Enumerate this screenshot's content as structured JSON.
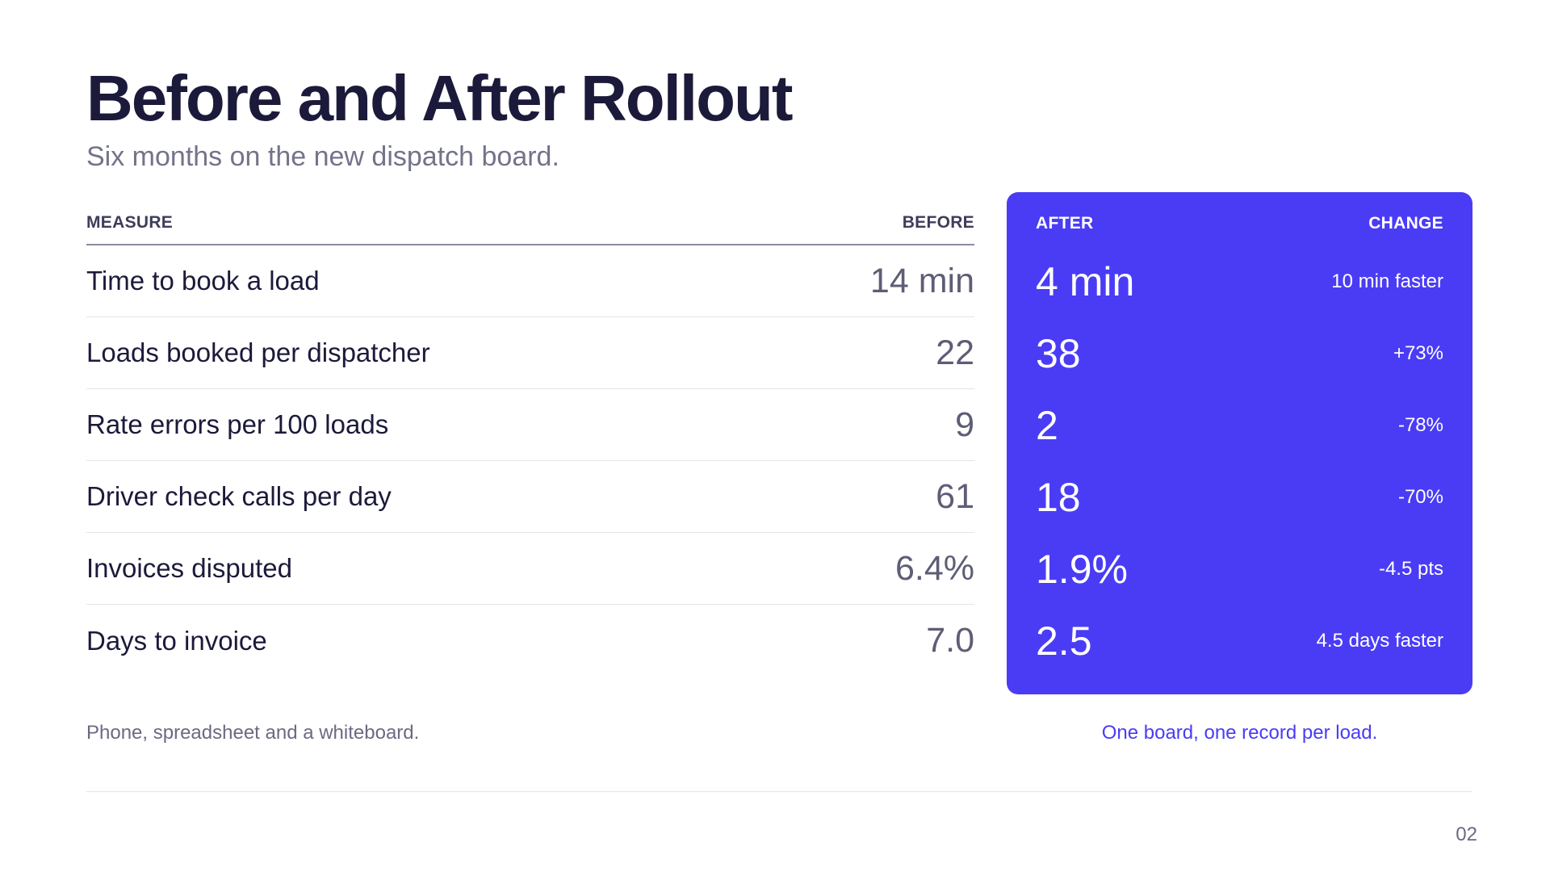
{
  "title": "Before and After Rollout",
  "subtitle": "Six months on the new dispatch board.",
  "headers": {
    "measure": "MEASURE",
    "before": "BEFORE",
    "after": "AFTER",
    "change": "CHANGE"
  },
  "rows": [
    {
      "measure": "Time to book a load",
      "before": "14 min",
      "after": "4 min",
      "change": "10 min faster"
    },
    {
      "measure": "Loads booked per dispatcher",
      "before": "22",
      "after": "38",
      "change": "+73%"
    },
    {
      "measure": "Rate errors per 100 loads",
      "before": "9",
      "after": "2",
      "change": "-78%"
    },
    {
      "measure": "Driver check calls per day",
      "before": "61",
      "after": "18",
      "change": "-70%"
    },
    {
      "measure": "Invoices disputed",
      "before": "6.4%",
      "after": "1.9%",
      "change": "-4.5 pts"
    },
    {
      "measure": "Days to invoice",
      "before": "7.0",
      "after": "2.5",
      "change": "4.5 days faster"
    }
  ],
  "notes": {
    "before": "Phone, spreadsheet and a whiteboard.",
    "after": "One board, one record per load."
  },
  "page_number": "02",
  "colors": {
    "accent": "#4a3cf5",
    "title": "#1c1a3a",
    "muted": "#73738a"
  }
}
